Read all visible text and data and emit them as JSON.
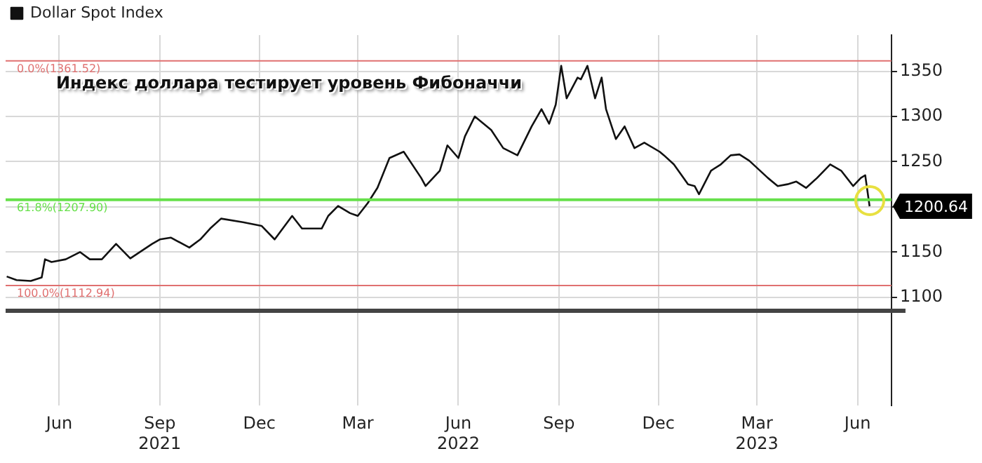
{
  "chart_data": {
    "type": "line",
    "title": "Индекс доллара тестирует уровень Фибоначчи",
    "x": [
      "2021-04-14",
      "2021-04-23",
      "2021-05-06",
      "2021-05-16",
      "2021-05-19",
      "2021-05-25",
      "2021-06-07",
      "2021-06-20",
      "2021-06-29",
      "2021-07-10",
      "2021-07-23",
      "2021-08-05",
      "2021-08-25",
      "2021-09-01",
      "2021-09-11",
      "2021-09-28",
      "2021-10-08",
      "2021-10-17",
      "2021-10-27",
      "2021-11-16",
      "2021-12-03",
      "2021-12-15",
      "2021-12-31",
      "2022-01-09",
      "2022-01-27",
      "2022-02-02",
      "2022-02-11",
      "2022-02-22",
      "2022-03-01",
      "2022-03-10",
      "2022-03-19",
      "2022-03-30",
      "2022-04-12",
      "2022-04-28",
      "2022-05-02",
      "2022-05-15",
      "2022-05-22",
      "2022-06-01",
      "2022-06-07",
      "2022-06-16",
      "2022-07-01",
      "2022-07-12",
      "2022-07-25",
      "2022-08-07",
      "2022-08-16",
      "2022-08-23",
      "2022-08-29",
      "2022-09-03",
      "2022-09-08",
      "2022-09-18",
      "2022-09-21",
      "2022-09-27",
      "2022-10-04",
      "2022-10-10",
      "2022-10-14",
      "2022-10-23",
      "2022-10-31",
      "2022-11-09",
      "2022-11-18",
      "2022-12-02",
      "2022-12-06",
      "2022-12-15",
      "2022-12-28",
      "2023-01-03",
      "2023-01-07",
      "2023-01-18",
      "2023-01-27",
      "2023-02-05",
      "2023-02-13",
      "2023-02-22",
      "2023-03-11",
      "2023-03-20",
      "2023-03-29",
      "2023-04-06",
      "2023-04-15",
      "2023-04-25",
      "2023-05-07",
      "2023-05-17",
      "2023-05-28",
      "2023-06-04",
      "2023-06-08",
      "2023-06-12"
    ],
    "series": [
      {
        "name": "Dollar Spot Index",
        "color": "#111111",
        "values": [
          1123,
          1119,
          1118,
          1122,
          1142,
          1139,
          1142,
          1150,
          1142,
          1142,
          1159,
          1143,
          1159,
          1164,
          1166,
          1155,
          1164,
          1176,
          1187,
          1183,
          1179,
          1164,
          1190,
          1176,
          1176,
          1190,
          1201,
          1193,
          1190,
          1204,
          1221,
          1254,
          1261,
          1232,
          1223,
          1240,
          1268,
          1254,
          1278,
          1300,
          1285,
          1265,
          1257,
          1289,
          1308,
          1292,
          1313,
          1356,
          1320,
          1343,
          1341,
          1356,
          1320,
          1343,
          1308,
          1275,
          1289,
          1265,
          1271,
          1261,
          1257,
          1247,
          1225,
          1223,
          1214,
          1240,
          1247,
          1257,
          1258,
          1251,
          1232,
          1223,
          1225,
          1228,
          1221,
          1232,
          1247,
          1240,
          1223,
          1232,
          1235,
          1200.64
        ]
      }
    ],
    "xlim": [
      "2021-04-13",
      "2023-07-02"
    ],
    "xticks": [
      {
        "value": "2021-06-01",
        "label": "Jun"
      },
      {
        "value": "2021-09-01",
        "label": "Sep 2021"
      },
      {
        "value": "2021-12-01",
        "label": "Dec"
      },
      {
        "value": "2022-03-01",
        "label": "Mar"
      },
      {
        "value": "2022-06-01",
        "label": "Jun 2022"
      },
      {
        "value": "2022-09-01",
        "label": "Sep"
      },
      {
        "value": "2022-12-01",
        "label": "Dec"
      },
      {
        "value": "2023-03-01",
        "label": "Mar 2023"
      },
      {
        "value": "2023-06-01",
        "label": "Jun"
      }
    ],
    "ylim": [
      980,
      1390
    ],
    "yticks": [
      1100,
      1150,
      {
        "value": 1200,
        "label": null
      },
      1250,
      1300,
      1350
    ],
    "ref_lines": [
      {
        "axis": "y",
        "value": 1361.52,
        "label": "0.0%(1361.52)",
        "color": "#e07070"
      },
      {
        "axis": "y",
        "value": 1207.9,
        "label": "61.8%(1207.90)",
        "color": "#66e04a"
      },
      {
        "axis": "y",
        "value": 1112.94,
        "label": "100.0%(1112.94)",
        "color": "#e07070"
      },
      {
        "axis": "y",
        "value": 1085,
        "label": null,
        "color": "#444444"
      }
    ],
    "annotations": [
      {
        "text": "1200.64",
        "x": "2023-06-12",
        "y": 1200.64
      }
    ],
    "grid": true,
    "legend": "top left",
    "marker": "none",
    "line_style": "solid"
  }
}
